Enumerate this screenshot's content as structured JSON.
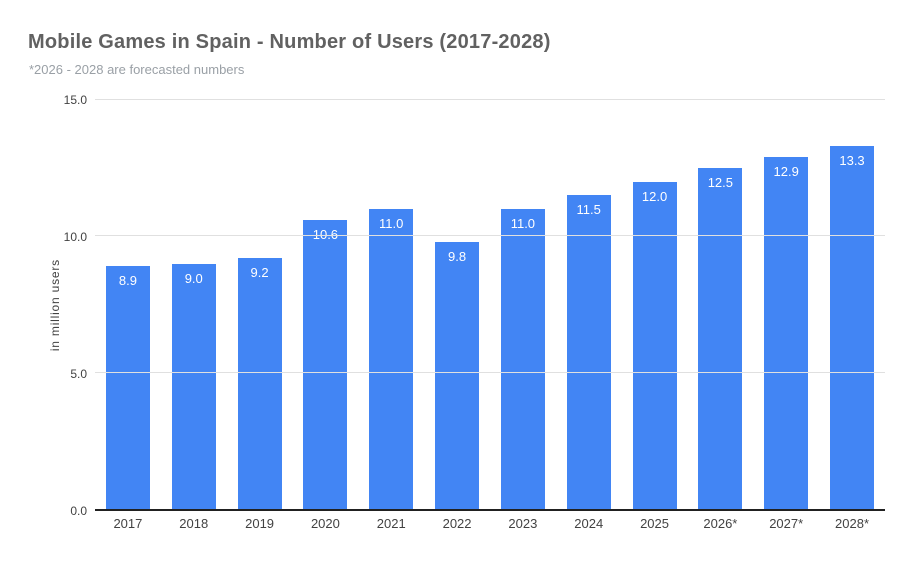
{
  "chart_data": {
    "type": "bar",
    "title": "Mobile Games in Spain - Number of Users (2017-2028)",
    "subtitle": "*2026 - 2028 are forecasted numbers",
    "categories": [
      "2017",
      "2018",
      "2019",
      "2020",
      "2021",
      "2022",
      "2023",
      "2024",
      "2025",
      "2026*",
      "2027*",
      "2028*"
    ],
    "values": [
      8.9,
      9.0,
      9.2,
      10.6,
      11.0,
      9.8,
      11.0,
      11.5,
      12.0,
      12.5,
      12.9,
      13.3
    ],
    "data_labels": [
      "8.9",
      "9.0",
      "9.2",
      "10.6",
      "11.0",
      "9.8",
      "11.0",
      "11.5",
      "12.0",
      "12.5",
      "12.9",
      "13.3"
    ],
    "xlabel": "",
    "ylabel": "in million users",
    "ylim": [
      0,
      15
    ],
    "y_ticks": [
      0,
      5,
      10,
      15
    ],
    "y_tick_labels": [
      "0.0",
      "5.0",
      "10.0",
      "15.0"
    ],
    "grid": true,
    "legend": "none",
    "colors": {
      "bar": "#4285F4",
      "title": "#616161",
      "subtitle": "#9AA0A6",
      "axis_text": "#424242",
      "gridline": "#E0E0E0",
      "baseline": "#212121",
      "data_label": "#FFFFFF",
      "background": "#FFFFFF"
    }
  }
}
